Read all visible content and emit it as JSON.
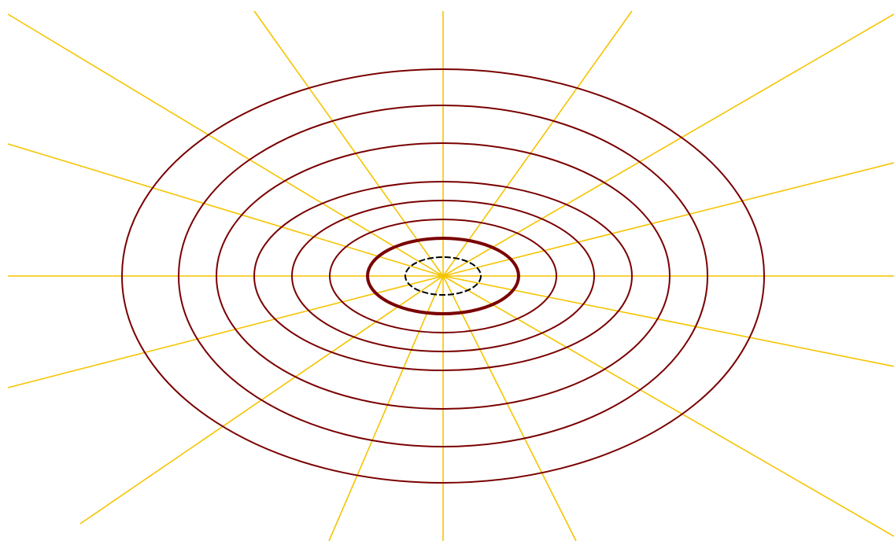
{
  "diagram": {
    "type": "ellipse-and-ray-pattern",
    "background_color": "#ffffff",
    "ray_color": "#f5c400",
    "ellipse_color": "#7a0000",
    "highlight_ellipse_color": "#7a0000",
    "focal_ellipse_color": "#000000",
    "focal_ellipse_style": "dashed",
    "ray_count": 16,
    "ellipse_count": 8
  }
}
